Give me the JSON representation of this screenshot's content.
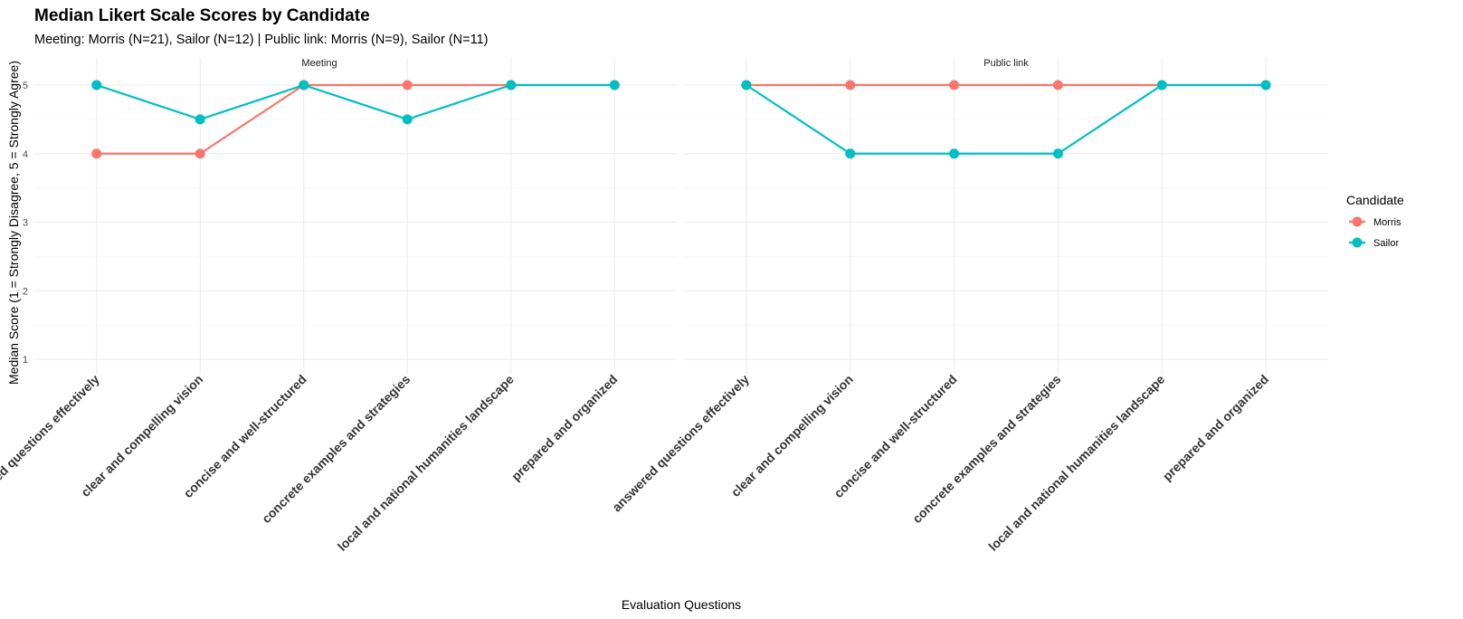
{
  "chart_data": {
    "type": "line",
    "title": "Median Likert Scale Scores by Candidate",
    "subtitle": "Meeting: Morris (N=21), Sailor (N=12) | Public link: Morris (N=9), Sailor (N=11)",
    "xlabel": "Evaluation Questions",
    "ylabel": "Median Score (1 = Strongly Disagree, 5 = Strongly Agree)",
    "ylim": [
      1,
      5
    ],
    "yticks": [
      "1",
      "2",
      "3",
      "4",
      "5"
    ],
    "grid": true,
    "legend": {
      "title": "Candidate",
      "position": "right"
    },
    "categories": [
      "answered questions effectively",
      "clear and compelling vision",
      "concise and well-structured",
      "concrete examples and strategies",
      "local and national humanities landscape",
      "prepared and organized"
    ],
    "panels": [
      {
        "label": "Meeting",
        "series": [
          {
            "name": "Morris",
            "color": "#F8766D",
            "values": [
              4,
              4,
              5,
              5,
              5,
              5
            ]
          },
          {
            "name": "Sailor",
            "color": "#00BFC4",
            "values": [
              5,
              4.5,
              5,
              4.5,
              5,
              5
            ]
          }
        ]
      },
      {
        "label": "Public link",
        "series": [
          {
            "name": "Morris",
            "color": "#F8766D",
            "values": [
              5,
              5,
              5,
              5,
              5,
              5
            ]
          },
          {
            "name": "Sailor",
            "color": "#00BFC4",
            "values": [
              5,
              4,
              4,
              4,
              5,
              5
            ]
          }
        ]
      }
    ]
  }
}
